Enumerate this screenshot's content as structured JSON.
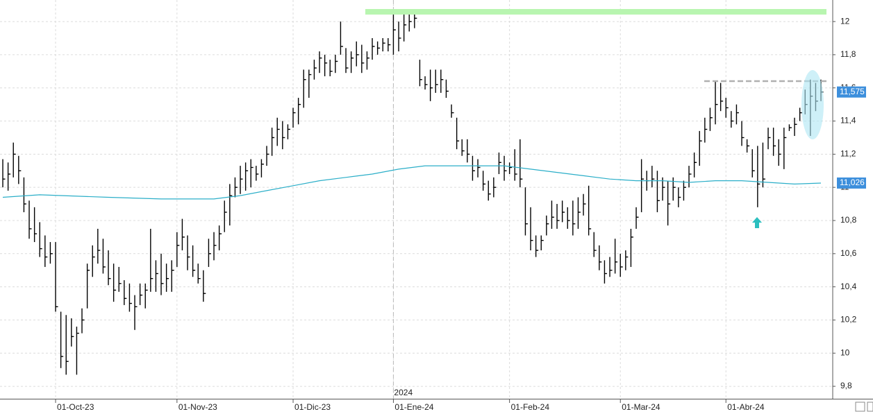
{
  "chart_data": {
    "type": "ohlc",
    "color": "#000000",
    "xlim": [
      -0.53,
      157.1
    ],
    "ylim": [
      9.725,
      12.13
    ],
    "xticks": [
      {
        "value": 10,
        "label": "01-Oct-23"
      },
      {
        "value": 33,
        "label": "01-Nov-23"
      },
      {
        "value": 55,
        "label": "01-Dic-23"
      },
      {
        "value": 74,
        "label": "01-Ene-24"
      },
      {
        "value": 96,
        "label": "01-Feb-24"
      },
      {
        "value": 117,
        "label": "01-Mar-24"
      },
      {
        "value": 137,
        "label": "01-Abr-24"
      }
    ],
    "yticks": [
      {
        "value": 9.8,
        "label": "9,8"
      },
      10,
      {
        "value": 10.2,
        "label": "10,2"
      },
      {
        "value": 10.4,
        "label": "10,4"
      },
      {
        "value": 10.6,
        "label": "10,6"
      },
      {
        "value": 10.8,
        "label": "10,8"
      },
      {
        "value": 11,
        "label": "11"
      },
      {
        "value": 11.2,
        "label": "11,2"
      },
      {
        "value": 11.4,
        "label": "11,4"
      },
      {
        "value": 11.6,
        "label": "11,6"
      },
      {
        "value": 11.8,
        "label": "11,8"
      },
      12
    ],
    "grid": true,
    "year_marker": {
      "x": 74,
      "text": "2024"
    },
    "high": [
      11.17,
      11.15,
      11.27,
      11.19,
      11.06,
      10.92,
      10.88,
      10.79,
      10.71,
      10.67,
      10.67,
      10.25,
      10.23,
      10.21,
      10.16,
      10.27,
      10.54,
      10.65,
      10.75,
      10.69,
      10.62,
      10.54,
      10.52,
      10.44,
      10.42,
      10.35,
      10.42,
      10.42,
      10.75,
      10.56,
      10.6,
      10.54,
      10.56,
      10.73,
      10.81,
      10.71,
      10.65,
      10.54,
      10.5,
      10.69,
      10.73,
      10.77,
      10.92,
      11.02,
      11.06,
      11.13,
      11.15,
      11.17,
      11.13,
      11.17,
      11.25,
      11.36,
      11.42,
      11.4,
      11.38,
      11.48,
      11.54,
      11.71,
      11.71,
      11.77,
      11.82,
      11.8,
      11.77,
      11.8,
      12,
      11.84,
      11.82,
      11.88,
      11.86,
      11.82,
      11.9,
      11.88,
      11.9,
      11.9,
      12.05,
      12,
      12.05,
      12.07,
      12.05,
      11.77,
      11.67,
      11.71,
      11.71,
      11.71,
      11.65,
      11.5,
      11.42,
      11.29,
      11.29,
      11.19,
      11.17,
      11.1,
      11.04,
      11.06,
      11.21,
      11.19,
      11.15,
      11.23,
      11.29,
      11,
      10.88,
      10.71,
      10.71,
      10.83,
      10.92,
      10.9,
      10.92,
      10.88,
      10.92,
      10.94,
      10.96,
      11.01,
      10.73,
      10.65,
      10.56,
      10.58,
      10.69,
      10.6,
      10.62,
      10.75,
      10.88,
      11.17,
      11.1,
      11.13,
      11.1,
      11.06,
      11.04,
      11.06,
      11,
      11.04,
      11.13,
      11.21,
      11.34,
      11.42,
      11.48,
      11.64,
      11.63,
      11.54,
      11.46,
      11.5,
      11.4,
      11.29,
      11.23,
      11.25,
      11.27,
      11.36,
      11.36,
      11.29,
      11.36,
      11.38,
      11.42,
      11.48,
      11.59,
      11.65,
      11.63,
      11.65
    ],
    "low": [
      11,
      10.98,
      11.06,
      11.02,
      10.85,
      10.69,
      10.67,
      10.58,
      10.52,
      10.54,
      10.25,
      9.91,
      9.87,
      10.04,
      9.87,
      10.12,
      10.27,
      10.46,
      10.54,
      10.48,
      10.41,
      10.31,
      10.37,
      10.29,
      10.25,
      10.14,
      10.29,
      10.27,
      10.37,
      10.37,
      10.35,
      10.37,
      10.37,
      10.52,
      10.62,
      10.5,
      10.46,
      10.42,
      10.31,
      10.52,
      10.56,
      10.62,
      10.73,
      10.77,
      10.94,
      10.96,
      10.98,
      11,
      11.04,
      11.06,
      11.13,
      11.19,
      11.25,
      11.23,
      11.29,
      11.36,
      11.38,
      11.48,
      11.54,
      11.65,
      11.69,
      11.67,
      11.67,
      11.69,
      11.8,
      11.69,
      11.69,
      11.73,
      11.69,
      11.71,
      11.77,
      11.8,
      11.82,
      11.82,
      11.8,
      11.82,
      11.88,
      11.94,
      11.96,
      11.61,
      11.59,
      11.52,
      11.57,
      11.57,
      11.54,
      11.42,
      11.23,
      11.19,
      11.15,
      11.04,
      11.06,
      10.98,
      10.92,
      10.94,
      11.08,
      11.04,
      11.08,
      11.04,
      11,
      10.71,
      10.62,
      10.58,
      10.62,
      10.71,
      10.75,
      10.75,
      10.79,
      10.75,
      10.71,
      10.75,
      10.83,
      10.71,
      10.58,
      10.5,
      10.42,
      10.46,
      10.48,
      10.46,
      10.5,
      10.52,
      10.75,
      10.85,
      10.98,
      11,
      10.85,
      10.92,
      10.77,
      10.92,
      10.88,
      10.92,
      11,
      11.06,
      11.13,
      11.27,
      11.34,
      11.38,
      11.46,
      11.42,
      11.36,
      11.38,
      11.25,
      11.21,
      11.06,
      10.88,
      11,
      11.23,
      11.19,
      11.13,
      11.11,
      11.34,
      11.31,
      11.4,
      11.44,
      11.31,
      11.46,
      11.52
    ],
    "close": [
      11.05,
      11.08,
      11.2,
      11.1,
      10.9,
      10.75,
      10.72,
      10.63,
      10.58,
      10.6,
      10.28,
      9.98,
      9.95,
      10.1,
      10.12,
      10.2,
      10.5,
      10.58,
      10.62,
      10.52,
      10.45,
      10.38,
      10.42,
      10.33,
      10.3,
      10.28,
      10.35,
      10.38,
      10.45,
      10.48,
      10.42,
      10.45,
      10.5,
      10.65,
      10.7,
      10.58,
      10.5,
      10.45,
      10.36,
      10.6,
      10.65,
      10.72,
      10.85,
      10.95,
      11,
      11.05,
      11.1,
      11.12,
      11.08,
      11.14,
      11.2,
      11.3,
      11.35,
      11.3,
      11.35,
      11.45,
      11.5,
      11.65,
      11.68,
      11.72,
      11.78,
      11.75,
      11.7,
      11.76,
      11.85,
      11.72,
      11.78,
      11.8,
      11.75,
      11.78,
      11.85,
      11.84,
      11.87,
      11.86,
      11.95,
      11.9,
      11.98,
      12,
      12.02,
      11.65,
      11.62,
      11.6,
      11.62,
      11.65,
      11.58,
      11.45,
      11.28,
      11.22,
      11.2,
      11.1,
      11.12,
      11.02,
      10.96,
      11,
      11.15,
      11.1,
      11.12,
      11.08,
      11.05,
      10.78,
      10.68,
      10.62,
      10.68,
      10.78,
      10.82,
      10.8,
      10.85,
      10.8,
      10.78,
      10.85,
      10.9,
      10.75,
      10.62,
      10.55,
      10.48,
      10.5,
      10.55,
      10.52,
      10.58,
      10.7,
      10.82,
      11.05,
      11.04,
      11.05,
      10.92,
      11,
      10.9,
      11,
      10.94,
      11,
      11.08,
      11.15,
      11.28,
      11.35,
      11.42,
      11.5,
      11.52,
      11.48,
      11.4,
      11.45,
      11.3,
      11.25,
      11.1,
      11.02,
      11.05,
      11.3,
      11.25,
      11.2,
      11.3,
      11.36,
      11.38,
      11.45,
      11.5,
      11.55,
      11.52,
      11.575
    ],
    "last_label": "11,575",
    "label_color": "#3d8fdc",
    "ma": {
      "color": "#2aaec8",
      "x": [
        0,
        7,
        20,
        30,
        40,
        45,
        50,
        55,
        60,
        65,
        70,
        75,
        80,
        85,
        90,
        95,
        100,
        105,
        110,
        115,
        120,
        125,
        130,
        135,
        140,
        145,
        150,
        155
      ],
      "values": [
        10.94,
        10.955,
        10.94,
        10.93,
        10.93,
        10.95,
        10.98,
        11.01,
        11.04,
        11.06,
        11.08,
        11.11,
        11.13,
        11.13,
        11.13,
        11.13,
        11.11,
        11.09,
        11.07,
        11.05,
        11.04,
        11.04,
        11.03,
        11.04,
        11.04,
        11.03,
        11.02,
        11.026
      ],
      "last_label": "11,026"
    }
  }
}
